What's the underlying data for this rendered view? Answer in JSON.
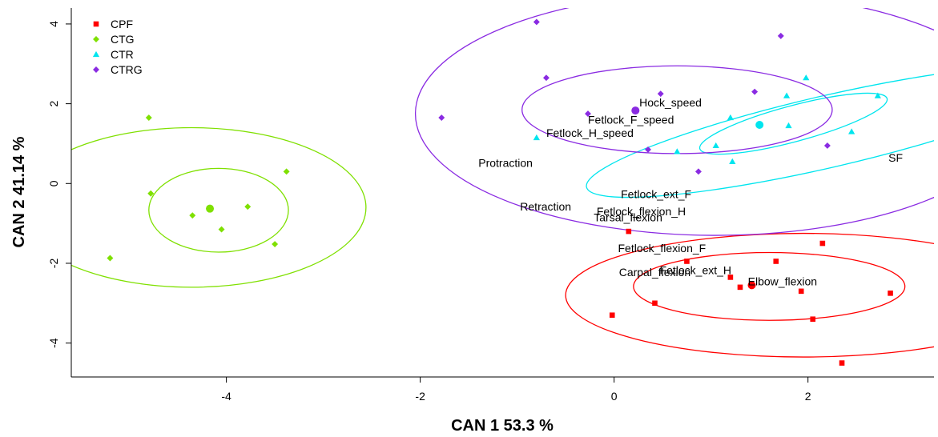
{
  "chart_data": {
    "type": "scatter",
    "xlabel": "CAN 1 53.3 %",
    "ylabel": "CAN 2 41.14 %",
    "xlim": [
      -5.6,
      3.3
    ],
    "ylim": [
      -4.85,
      4.4
    ],
    "x_ticks": [
      -4,
      -2,
      0,
      2
    ],
    "y_ticks": [
      -4,
      -2,
      0,
      2,
      4
    ],
    "legend_position": "top-left",
    "series": [
      {
        "name": "CPF",
        "color": "#ff0000",
        "marker": "square",
        "points": [
          [
            0.15,
            -1.2
          ],
          [
            0.75,
            -1.95
          ],
          [
            -0.02,
            -3.3
          ],
          [
            0.42,
            -3.0
          ],
          [
            1.2,
            -2.35
          ],
          [
            1.3,
            -2.6
          ],
          [
            1.67,
            -1.95
          ],
          [
            1.93,
            -2.7
          ],
          [
            2.05,
            -3.4
          ],
          [
            2.15,
            -1.5
          ],
          [
            2.35,
            -4.5
          ],
          [
            2.85,
            -2.75
          ]
        ],
        "centroid": [
          1.42,
          -2.55
        ],
        "inner_ellipse": {
          "cx": 1.6,
          "cy": -2.58,
          "rx": 1.4,
          "ry": 0.85
        },
        "outer_ellipse": {
          "cx": 1.95,
          "cy": -2.8,
          "rx": 2.45,
          "ry": 1.55
        }
      },
      {
        "name": "CTG",
        "color": "#7fe000",
        "marker": "diamond",
        "points": [
          [
            -4.8,
            1.65
          ],
          [
            -3.38,
            0.3
          ],
          [
            -4.78,
            -0.25
          ],
          [
            -3.78,
            -0.58
          ],
          [
            -4.35,
            -0.8
          ],
          [
            -4.05,
            -1.15
          ],
          [
            -3.5,
            -1.52
          ],
          [
            -5.2,
            -1.87
          ]
        ],
        "centroid": [
          -4.17,
          -0.63
        ],
        "inner_ellipse": {
          "cx": -4.08,
          "cy": -0.67,
          "rx": 0.72,
          "ry": 1.05
        },
        "outer_ellipse": {
          "cx": -4.36,
          "cy": -0.6,
          "rx": 1.8,
          "ry": 2.0
        }
      },
      {
        "name": "CTR",
        "color": "#00e5ee",
        "marker": "triangle",
        "points": [
          [
            -0.8,
            1.15
          ],
          [
            0.65,
            0.8
          ],
          [
            1.05,
            0.95
          ],
          [
            1.2,
            1.65
          ],
          [
            1.22,
            0.55
          ],
          [
            1.78,
            2.2
          ],
          [
            1.8,
            1.45
          ],
          [
            1.98,
            2.65
          ],
          [
            2.45,
            1.3
          ],
          [
            2.72,
            2.2
          ]
        ],
        "centroid": [
          1.5,
          1.47
        ],
        "inner_ellipse": {
          "cx": 1.85,
          "cy": 1.5,
          "rx": 1.0,
          "ry": 0.45,
          "angle": -15
        },
        "outer_ellipse": {
          "cx": 2.2,
          "cy": 1.3,
          "rx": 2.55,
          "ry": 0.9,
          "angle": -13
        }
      },
      {
        "name": "CTRG",
        "color": "#8a2be2",
        "marker": "diamond",
        "points": [
          [
            -1.78,
            1.65
          ],
          [
            -0.8,
            4.05
          ],
          [
            -0.7,
            2.65
          ],
          [
            -0.27,
            1.75
          ],
          [
            0.35,
            0.85
          ],
          [
            0.48,
            2.25
          ],
          [
            0.87,
            0.3
          ],
          [
            1.45,
            2.3
          ],
          [
            1.72,
            3.7
          ],
          [
            2.2,
            0.95
          ]
        ],
        "centroid": [
          0.22,
          1.83
        ],
        "inner_ellipse": {
          "cx": 0.65,
          "cy": 1.85,
          "rx": 1.6,
          "ry": 1.1
        },
        "outer_ellipse": {
          "cx": 1.05,
          "cy": 1.75,
          "rx": 3.1,
          "ry": 3.05
        }
      }
    ],
    "annotations": [
      {
        "text": "Hock_speed",
        "x": 0.26,
        "y": 2.03
      },
      {
        "text": "Fetlock_F_speed",
        "x": -0.27,
        "y": 1.6
      },
      {
        "text": "Fetlock_H_speed",
        "x": -0.7,
        "y": 1.27
      },
      {
        "text": "Protraction",
        "x": -1.4,
        "y": 0.52
      },
      {
        "text": "SF",
        "x": 2.83,
        "y": 0.65
      },
      {
        "text": "Fetlock_ext_F",
        "x": 0.07,
        "y": -0.27
      },
      {
        "text": "Retraction",
        "x": -0.97,
        "y": -0.58
      },
      {
        "text": "Fetlock_flexion_H",
        "x": -0.18,
        "y": -0.7
      },
      {
        "text": "Tarsal_flexion",
        "x": -0.21,
        "y": -0.85
      },
      {
        "text": "Fetlock_flexion_F",
        "x": 0.04,
        "y": -1.62
      },
      {
        "text": "Fetlock_ext_H",
        "x": 0.47,
        "y": -2.17
      },
      {
        "text": "Carpal_flexion",
        "x": 0.05,
        "y": -2.22
      },
      {
        "text": "Elbow_flexion",
        "x": 1.38,
        "y": -2.45
      }
    ]
  }
}
